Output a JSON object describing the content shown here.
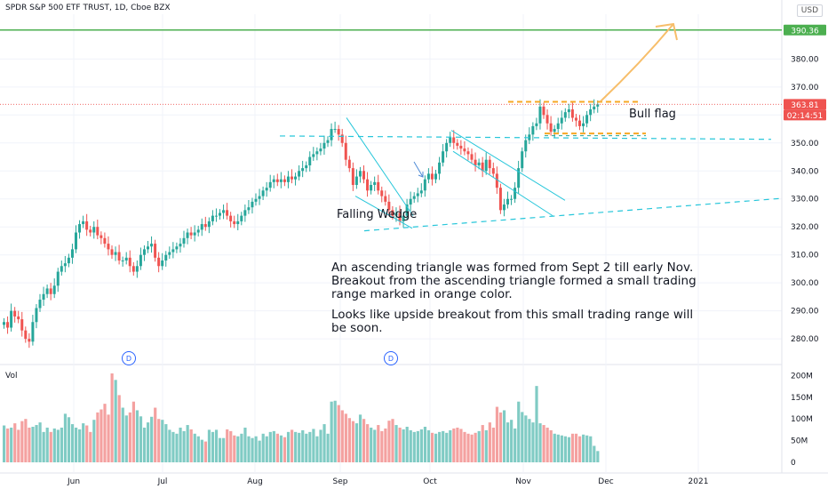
{
  "header": {
    "title": "SPDR S&P 500 ETF TRUST, 1D, Cboe BZX",
    "currency": "USD"
  },
  "volume_label": "Vol",
  "badges": {
    "last_price": {
      "text": "363.81",
      "color": "#ef5350"
    },
    "countdown": {
      "text": "02:14:51",
      "color": "#ef5350"
    },
    "level": {
      "text": "390.36",
      "color": "#4caf50"
    }
  },
  "dividend_marker": "D",
  "annotations": {
    "falling_wedge": "Falling Wedge",
    "bull_flag": "Bull flag",
    "note_line1": "An ascending triangle was formed from Sept 2 till early Nov.",
    "note_line2": "Breakout from the ascending triangle formed a small trading",
    "note_line3": "range marked in orange color.",
    "note_line4": "Looks like upside breakout from this small trading range will",
    "note_line5": "be soon."
  },
  "colors": {
    "up": "#26a69a",
    "down": "#ef5350",
    "trend": "#26c6da",
    "range": "#f7a825",
    "level": "#4caf50"
  },
  "chart_data": {
    "type": "candlestick",
    "symbol": "SPY",
    "interval": "1D",
    "price_axis": {
      "ticks": [
        280,
        290,
        300,
        310,
        320,
        330,
        340,
        350,
        360,
        370,
        380
      ],
      "range": [
        274,
        396
      ]
    },
    "volume_axis": {
      "ticks": [
        {
          "v": 0,
          "label": "0"
        },
        {
          "v": 50,
          "label": "50M"
        },
        {
          "v": 100,
          "label": "100M"
        },
        {
          "v": 150,
          "label": "150M"
        },
        {
          "v": 200,
          "label": "200M"
        }
      ],
      "range": [
        0,
        205
      ]
    },
    "time_axis": [
      "Jun",
      "Jul",
      "Aug",
      "Sep",
      "Oct",
      "Nov",
      "Dec",
      "2021"
    ],
    "closes": [
      286,
      284,
      290,
      288,
      287,
      283,
      280,
      279,
      286,
      291,
      294,
      296,
      298,
      296,
      299,
      304,
      306,
      307,
      309,
      312,
      318,
      321,
      322,
      319,
      318,
      320,
      317,
      316,
      314,
      312,
      310,
      311,
      308,
      308,
      309,
      306,
      304,
      306,
      310,
      312,
      313,
      314,
      309,
      306,
      308,
      310,
      311,
      312,
      313,
      314,
      316,
      318,
      317,
      318,
      319,
      321,
      320,
      322,
      324,
      324,
      325,
      326,
      324,
      322,
      321,
      322,
      324,
      326,
      327,
      329,
      330,
      331,
      333,
      334,
      336,
      337,
      336,
      337,
      336,
      338,
      337,
      338,
      340,
      341,
      342,
      345,
      346,
      347,
      348,
      350,
      351,
      355,
      355,
      353,
      350,
      344,
      341,
      335,
      338,
      340,
      337,
      333,
      335,
      336,
      333,
      331,
      329,
      326,
      324,
      325,
      322,
      324,
      328,
      330,
      331,
      332,
      333,
      337,
      339,
      337,
      339,
      343,
      347,
      350,
      352,
      350,
      349,
      348,
      347,
      346,
      344,
      342,
      343,
      340,
      344,
      341,
      339,
      334,
      326,
      328,
      330,
      330,
      334,
      341,
      347,
      351,
      353,
      356,
      357,
      363,
      360,
      357,
      354,
      355,
      357,
      359,
      361,
      362,
      359,
      358,
      356,
      357,
      360,
      362,
      363,
      363.81
    ],
    "volumes": [
      85,
      78,
      80,
      90,
      75,
      95,
      100,
      80,
      82,
      86,
      92,
      70,
      80,
      70,
      78,
      75,
      80,
      112,
      104,
      88,
      80,
      76,
      90,
      85,
      70,
      98,
      115,
      122,
      135,
      110,
      205,
      190,
      155,
      126,
      108,
      115,
      140,
      120,
      106,
      80,
      92,
      105,
      126,
      100,
      98,
      88,
      75,
      70,
      66,
      80,
      72,
      86,
      76,
      66,
      60,
      52,
      48,
      75,
      70,
      75,
      56,
      56,
      76,
      72,
      62,
      60,
      66,
      80,
      60,
      56,
      60,
      50,
      66,
      60,
      70,
      72,
      66,
      62,
      58,
      70,
      75,
      70,
      68,
      74,
      66,
      70,
      77,
      60,
      75,
      88,
      66,
      140,
      142,
      132,
      120,
      112,
      102,
      95,
      90,
      110,
      100,
      88,
      80,
      75,
      86,
      72,
      78,
      96,
      100,
      86,
      80,
      76,
      82,
      74,
      70,
      72,
      76,
      82,
      74,
      68,
      66,
      70,
      72,
      68,
      74,
      78,
      80,
      77,
      70,
      66,
      64,
      68,
      72,
      86,
      74,
      92,
      80,
      128,
      115,
      120,
      92,
      98,
      78,
      140,
      116,
      108,
      100,
      92,
      176,
      90,
      86,
      80,
      74,
      66,
      64,
      62,
      60,
      58,
      66,
      66,
      60,
      64,
      62,
      60,
      38,
      26
    ]
  }
}
